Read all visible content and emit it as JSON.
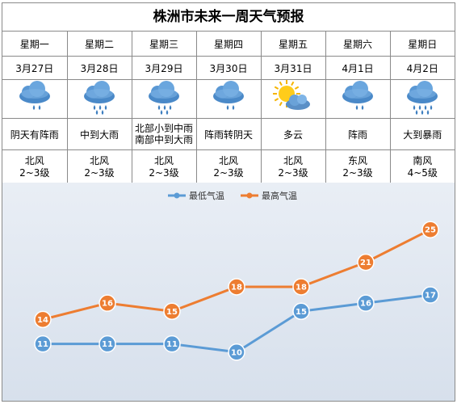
{
  "title": "株洲市未来一周天气预报",
  "days": [
    {
      "weekday": "星期一",
      "date": "3月27日",
      "icon": "rain-cloud-icon",
      "condition": [
        "阴天有阵雨"
      ],
      "wind_dir": "北风",
      "wind_level": "2~3级"
    },
    {
      "weekday": "星期二",
      "date": "3月28日",
      "icon": "heavy-rain-cloud-icon",
      "condition": [
        "中到大雨"
      ],
      "wind_dir": "北风",
      "wind_level": "2~3级"
    },
    {
      "weekday": "星期三",
      "date": "3月29日",
      "icon": "heavy-rain-cloud-icon",
      "condition": [
        "北部小到中雨",
        "南部中到大雨"
      ],
      "wind_dir": "北风",
      "wind_level": "2~3级"
    },
    {
      "weekday": "星期四",
      "date": "3月30日",
      "icon": "rain-cloud-icon",
      "condition": [
        "阵雨转阴天"
      ],
      "wind_dir": "北风",
      "wind_level": "2~3级"
    },
    {
      "weekday": "星期五",
      "date": "3月31日",
      "icon": "sun-cloud-icon",
      "condition": [
        "多云"
      ],
      "wind_dir": "北风",
      "wind_level": "2~3级"
    },
    {
      "weekday": "星期六",
      "date": "4月1日",
      "icon": "rain-cloud-icon",
      "condition": [
        "阵雨"
      ],
      "wind_dir": "东风",
      "wind_level": "2~3级"
    },
    {
      "weekday": "星期日",
      "date": "4月2日",
      "icon": "storm-rain-cloud-icon",
      "condition": [
        "大到暴雨"
      ],
      "wind_dir": "南风",
      "wind_level": "4~5级"
    }
  ],
  "chart_data": {
    "type": "line",
    "categories": [
      "星期一",
      "星期二",
      "星期三",
      "星期四",
      "星期五",
      "星期六",
      "星期日"
    ],
    "series": [
      {
        "name": "最低气温",
        "values": [
          11,
          11,
          11,
          10,
          15,
          16,
          17
        ],
        "color": "#5b9bd5"
      },
      {
        "name": "最高气温",
        "values": [
          14,
          16,
          15,
          18,
          18,
          21,
          25
        ],
        "color": "#ed7d31"
      }
    ],
    "ylim": [
      8,
      27
    ],
    "legend": "top-center",
    "grid": false,
    "data_labels": true
  }
}
